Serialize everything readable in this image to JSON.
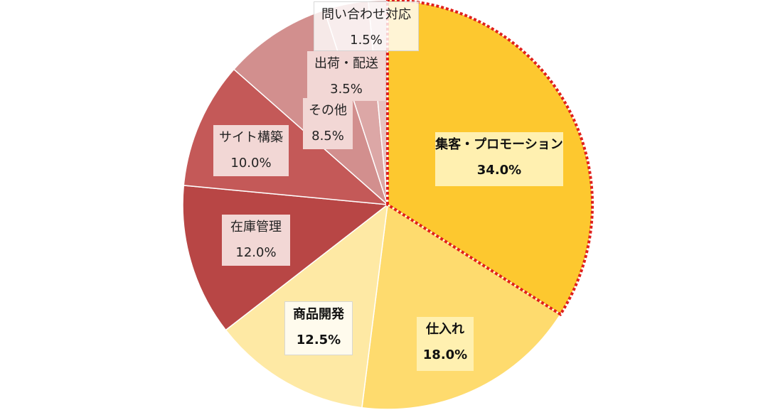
{
  "chart_data": {
    "type": "pie",
    "title": "",
    "slices": [
      {
        "label": "集客・プロモーション",
        "value": 34.0,
        "value_label": "34.0%",
        "color": "#FDC82F",
        "highlighted": true,
        "bold": true
      },
      {
        "label": "仕入れ",
        "value": 18.0,
        "value_label": "18.0%",
        "color": "#FEDB6E",
        "highlighted": false,
        "bold": true
      },
      {
        "label": "商品開発",
        "value": 12.5,
        "value_label": "12.5%",
        "color": "#FEE9A4",
        "highlighted": false,
        "bold": true
      },
      {
        "label": "在庫管理",
        "value": 12.0,
        "value_label": "12.0%",
        "color": "#B84645",
        "highlighted": false,
        "bold": false
      },
      {
        "label": "サイト構築",
        "value": 10.0,
        "value_label": "10.0%",
        "color": "#C45958",
        "highlighted": false,
        "bold": false
      },
      {
        "label": "その他",
        "value": 8.5,
        "value_label": "8.5%",
        "color": "#D28F8E",
        "highlighted": false,
        "bold": false
      },
      {
        "label": "出荷・配送",
        "value": 3.5,
        "value_label": "3.5%",
        "color": "#DCA7A6",
        "highlighted": false,
        "bold": false
      },
      {
        "label": "問い合わせ対応",
        "value": 1.5,
        "value_label": "1.5%",
        "color": "#E7C2C1",
        "highlighted": false,
        "bold": false
      }
    ],
    "start_angle_deg": 0,
    "direction": "clockwise",
    "highlight_border_color": "#E0201B",
    "slice_border_color": "#FFFFFF"
  }
}
